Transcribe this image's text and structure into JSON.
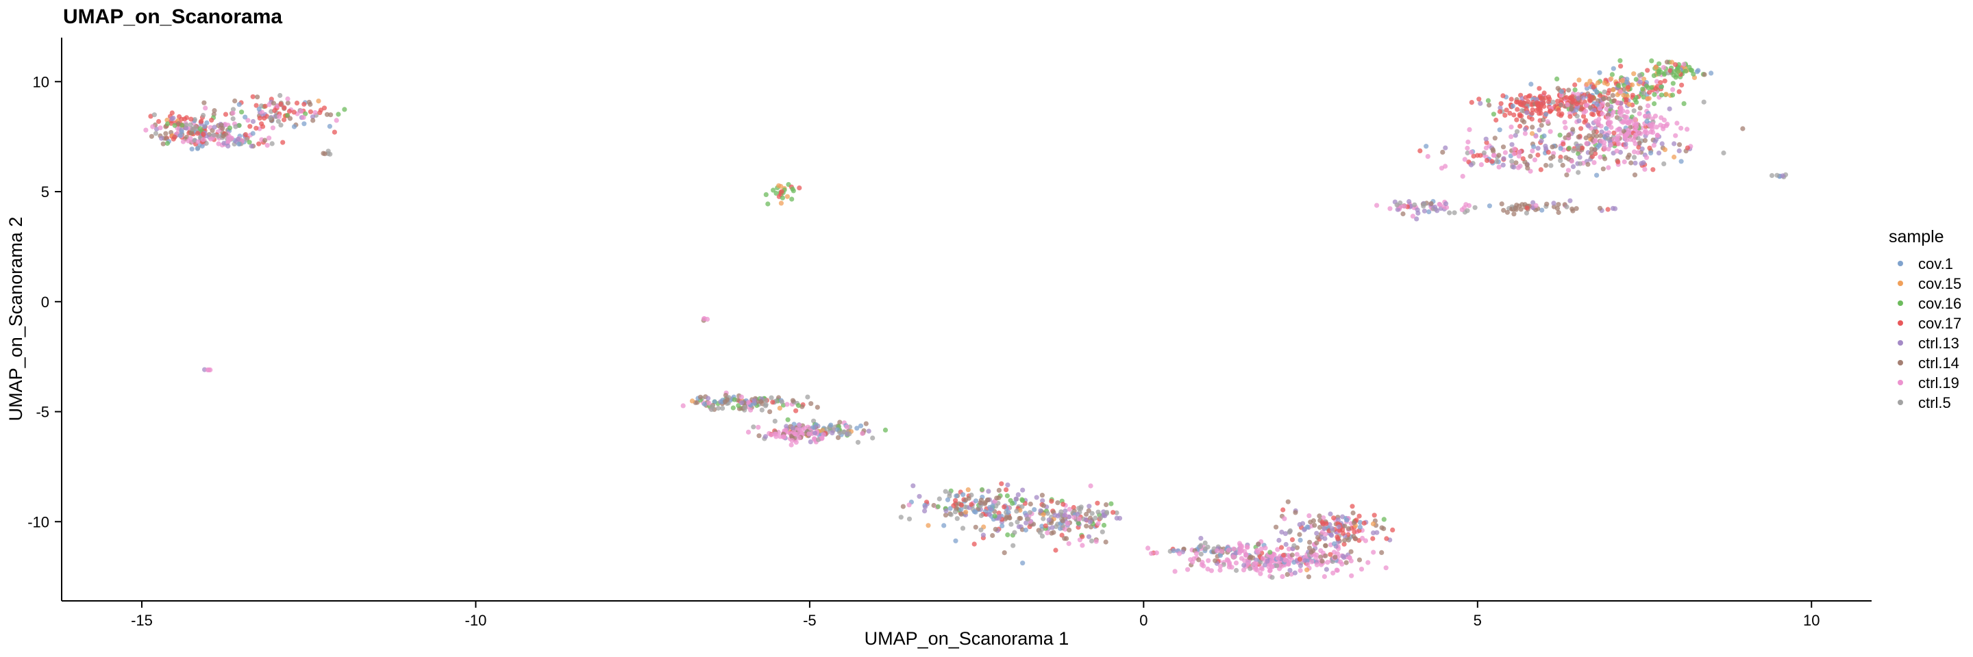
{
  "chart_data": {
    "type": "scatter",
    "title": "UMAP_on_Scanorama",
    "xlabel": "UMAP_on_Scanorama 1",
    "ylabel": "UMAP_on_Scanorama 2",
    "xlim": [
      -16.2,
      10.9
    ],
    "ylim": [
      -13.6,
      12.0
    ],
    "xticks": [
      -15,
      -10,
      -5,
      0,
      5,
      10
    ],
    "yticks": [
      -10,
      -5,
      0,
      5,
      10
    ],
    "grid": false,
    "legend": {
      "title": "sample",
      "position": "right",
      "entries": [
        {
          "name": "cov.1",
          "color": "#7fa2cd"
        },
        {
          "name": "cov.15",
          "color": "#f0a05a"
        },
        {
          "name": "cov.16",
          "color": "#6dbb5d"
        },
        {
          "name": "cov.17",
          "color": "#e8585a"
        },
        {
          "name": "ctrl.13",
          "color": "#a48ac6"
        },
        {
          "name": "ctrl.14",
          "color": "#a47f72"
        },
        {
          "name": "ctrl.19",
          "color": "#ec93cf"
        },
        {
          "name": "ctrl.5",
          "color": "#a2a2a2"
        }
      ]
    },
    "clusters": [
      {
        "center": [
          -14.2,
          7.7
        ],
        "spread": [
          0.35,
          0.25
        ],
        "count": 110,
        "weights": [
          1,
          0.3,
          0.5,
          2,
          1.2,
          2,
          2,
          1
        ]
      },
      {
        "center": [
          -13.7,
          7.3
        ],
        "spread": [
          0.45,
          0.15
        ],
        "count": 70,
        "weights": [
          1,
          0.2,
          0.3,
          0.8,
          1,
          1,
          3,
          1
        ]
      },
      {
        "center": [
          -12.9,
          8.6
        ],
        "spread": [
          0.35,
          0.35
        ],
        "count": 110,
        "weights": [
          1,
          0.3,
          0.8,
          3,
          1,
          2,
          1.5,
          1
        ]
      },
      {
        "center": [
          -14.4,
          8.2
        ],
        "spread": [
          0.3,
          0.2
        ],
        "count": 40,
        "weights": [
          0.5,
          0.3,
          0.3,
          3,
          0.5,
          1,
          0.5,
          0.5
        ]
      },
      {
        "center": [
          -12.3,
          6.75
        ],
        "spread": [
          0.08,
          0.03
        ],
        "count": 5,
        "weights": [
          0,
          0,
          0,
          0,
          0,
          1,
          0,
          1
        ]
      },
      {
        "center": [
          -14.0,
          -3.1
        ],
        "spread": [
          0.04,
          0.03
        ],
        "count": 4,
        "weights": [
          0,
          0,
          0,
          0,
          1,
          0,
          1,
          0
        ]
      },
      {
        "center": [
          -5.4,
          5.0
        ],
        "spread": [
          0.1,
          0.22
        ],
        "count": 24,
        "weights": [
          0.2,
          1,
          3,
          2,
          0,
          0,
          0,
          0
        ]
      },
      {
        "center": [
          -6.55,
          -0.8
        ],
        "spread": [
          0.03,
          0.05
        ],
        "count": 4,
        "weights": [
          0,
          0,
          0,
          0,
          0,
          1,
          1,
          0
        ]
      },
      {
        "center": [
          -6.0,
          -4.6
        ],
        "spread": [
          0.4,
          0.18
        ],
        "count": 120,
        "weights": [
          1,
          0.3,
          2,
          0.5,
          1,
          2,
          1,
          1.5
        ]
      },
      {
        "center": [
          -4.9,
          -5.8
        ],
        "spread": [
          0.45,
          0.2
        ],
        "count": 110,
        "weights": [
          1.5,
          0.5,
          1,
          0.5,
          1,
          1.5,
          1.5,
          1.5
        ]
      },
      {
        "center": [
          -5.2,
          -6.1
        ],
        "spread": [
          0.2,
          0.15
        ],
        "count": 60,
        "weights": [
          0.3,
          0,
          0,
          0,
          0.5,
          0.5,
          4,
          0.5
        ]
      },
      {
        "center": [
          -2.5,
          -9.3
        ],
        "spread": [
          0.45,
          0.45
        ],
        "count": 150,
        "weights": [
          1.5,
          0.3,
          0.8,
          0.8,
          1.5,
          2,
          1,
          1.5
        ]
      },
      {
        "center": [
          -1.4,
          -10.0
        ],
        "spread": [
          0.5,
          0.5
        ],
        "count": 160,
        "weights": [
          1,
          0.3,
          1,
          1,
          2,
          2,
          1,
          1.5
        ]
      },
      {
        "center": [
          -0.9,
          -9.7
        ],
        "spread": [
          0.3,
          0.2
        ],
        "count": 30,
        "weights": [
          0.5,
          0,
          0,
          0.5,
          3,
          1,
          1,
          1
        ]
      },
      {
        "center": [
          1.0,
          -11.3
        ],
        "spread": [
          0.35,
          0.2
        ],
        "count": 60,
        "weights": [
          1,
          0,
          0.3,
          0.3,
          1,
          1.5,
          1,
          1.5
        ]
      },
      {
        "center": [
          2.0,
          -11.8
        ],
        "spread": [
          0.6,
          0.3
        ],
        "count": 250,
        "weights": [
          0.3,
          0,
          0,
          0.2,
          1,
          0.5,
          6,
          0.5
        ]
      },
      {
        "center": [
          2.6,
          -10.6
        ],
        "spread": [
          0.35,
          0.6
        ],
        "count": 90,
        "weights": [
          0.5,
          0.2,
          0.3,
          0.5,
          2,
          2,
          1.5,
          1
        ]
      },
      {
        "center": [
          3.1,
          -10.2
        ],
        "spread": [
          0.3,
          0.35
        ],
        "count": 80,
        "weights": [
          0.5,
          0.2,
          0.3,
          2.5,
          1,
          2.5,
          0.5,
          0.5
        ]
      },
      {
        "center": [
          4.3,
          4.3
        ],
        "spread": [
          0.35,
          0.2
        ],
        "count": 60,
        "weights": [
          0.5,
          0,
          0,
          0.2,
          2,
          1,
          3,
          1
        ]
      },
      {
        "center": [
          5.2,
          6.6
        ],
        "spread": [
          0.4,
          0.3
        ],
        "count": 70,
        "weights": [
          0.5,
          0.1,
          0.2,
          1.5,
          1,
          1,
          3,
          0.5
        ]
      },
      {
        "center": [
          5.9,
          8.9
        ],
        "spread": [
          0.35,
          0.35
        ],
        "count": 140,
        "weights": [
          0.3,
          0.2,
          0.3,
          6,
          0.5,
          1,
          0.5,
          0.3
        ]
      },
      {
        "center": [
          6.6,
          9.0
        ],
        "spread": [
          0.35,
          0.35
        ],
        "count": 140,
        "weights": [
          0.5,
          0.2,
          0.5,
          5,
          1,
          1.5,
          1,
          0.5
        ]
      },
      {
        "center": [
          6.7,
          7.1
        ],
        "spread": [
          0.6,
          0.6
        ],
        "count": 230,
        "weights": [
          0.8,
          0.2,
          0.3,
          1.5,
          2,
          2.5,
          2.5,
          1
        ]
      },
      {
        "center": [
          7.3,
          8.0
        ],
        "spread": [
          0.3,
          0.45
        ],
        "count": 150,
        "weights": [
          0.2,
          0.1,
          0.1,
          0.3,
          0.5,
          0.5,
          6,
          0.3
        ]
      },
      {
        "center": [
          7.3,
          9.8
        ],
        "spread": [
          0.4,
          0.35
        ],
        "count": 130,
        "weights": [
          1,
          2,
          2.5,
          2,
          0.5,
          0.5,
          0.5,
          0.5
        ]
      },
      {
        "center": [
          8.0,
          10.5
        ],
        "spread": [
          0.25,
          0.15
        ],
        "count": 60,
        "weights": [
          0.5,
          0.5,
          5,
          0.5,
          0,
          0.2,
          0.2,
          0.2
        ]
      },
      {
        "center": [
          5.8,
          4.3
        ],
        "spread": [
          0.3,
          0.15
        ],
        "count": 45,
        "weights": [
          0.3,
          0,
          0,
          0.3,
          0.5,
          5,
          0.5,
          0.5
        ]
      },
      {
        "center": [
          7.0,
          4.2
        ],
        "spread": [
          0.1,
          0.05
        ],
        "count": 5,
        "weights": [
          0,
          0,
          0,
          1,
          1,
          1,
          0,
          0
        ]
      },
      {
        "center": [
          9.5,
          5.7
        ],
        "spread": [
          0.12,
          0.04
        ],
        "count": 7,
        "weights": [
          1,
          0,
          0,
          0,
          1,
          0,
          0,
          1
        ]
      }
    ]
  }
}
